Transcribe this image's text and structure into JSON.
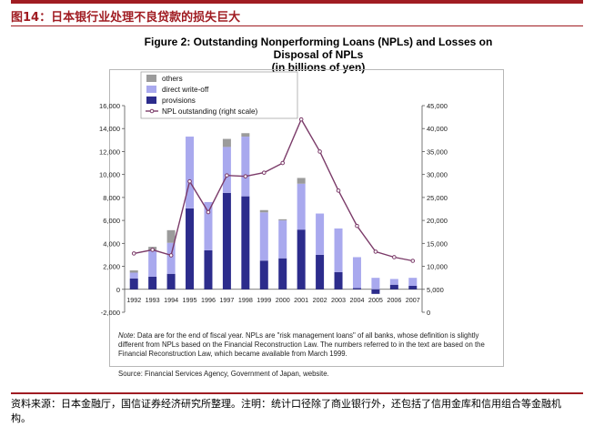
{
  "figure_caption": "图14：日本银行业处理不良贷款的损失巨大",
  "chart_title_line1": "Figure 2: Outstanding Nonperforming Loans (NPLs) and Losses on Disposal of NPLs",
  "chart_title_line2": "(in billions of yen)",
  "note_label": "Note",
  "note_text": ": Data are for the end of fiscal year. NPLs are \"risk management loans\" of all banks, whose definition is slightly different from NPLs based on the Financial Reconstruction Law. The numbers referred to in the text are based on the Financial Reconstruction Law, which became available from March 1999.",
  "source_text": "Source: Financial Services Agency, Government of Japan, website.",
  "footer_text": "资料来源：日本金融厅，国信证券经济研究所整理。注明：统计口径除了商业银行外，还包括了信用金库和信用组合等金融机构。",
  "colors": {
    "accent": "#a01c22",
    "others": "#9b9b9b",
    "direct_write_off": "#a9a9ee",
    "provisions": "#2c2c8c",
    "npl_line": "#7b3b69"
  },
  "chart_data": {
    "type": "bar",
    "stacked": true,
    "categories": [
      "1992",
      "1993",
      "1994",
      "1995",
      "1996",
      "1997",
      "1998",
      "1999",
      "2000",
      "2001",
      "2002",
      "2003",
      "2004",
      "2005",
      "2006",
      "2007"
    ],
    "series": [
      {
        "name": "provisions",
        "values": [
          950,
          1100,
          1350,
          7050,
          3400,
          8400,
          8100,
          2500,
          2700,
          5200,
          3000,
          1500,
          100,
          -400,
          400,
          300
        ]
      },
      {
        "name": "direct write-off",
        "values": [
          500,
          2300,
          2700,
          6250,
          4200,
          4000,
          5200,
          4200,
          3300,
          4000,
          3600,
          3800,
          2700,
          1000,
          500,
          700
        ]
      },
      {
        "name": "others",
        "values": [
          200,
          300,
          1100,
          0,
          0,
          700,
          300,
          200,
          100,
          500,
          0,
          0,
          0,
          0,
          0,
          0
        ]
      }
    ],
    "line_series": {
      "name": "NPL outstanding (right scale)",
      "axis": "right",
      "values": [
        12800,
        13600,
        12400,
        28500,
        21800,
        29800,
        29600,
        30400,
        32500,
        42000,
        35000,
        26500,
        18800,
        13200,
        12000,
        11200
      ]
    },
    "legend": [
      "others",
      "direct write-off",
      "provisions",
      "NPL outstanding (right scale)"
    ],
    "left_axis": {
      "min": -2000,
      "max": 16000,
      "ticks": [
        -2000,
        0,
        2000,
        4000,
        6000,
        8000,
        10000,
        12000,
        14000,
        16000
      ],
      "tick_labels": [
        "-2,000",
        "0",
        "2,000",
        "4,000",
        "6,000",
        "8,000",
        "10,000",
        "12,000",
        "14,000",
        "16,000"
      ]
    },
    "right_axis": {
      "min": 0,
      "max": 45000,
      "ticks": [
        0,
        5000,
        10000,
        15000,
        20000,
        25000,
        30000,
        35000,
        40000,
        45000
      ],
      "tick_labels": [
        "0",
        "5,000",
        "10,000",
        "15,000",
        "20,000",
        "25,000",
        "30,000",
        "35,000",
        "40,000",
        "45,000"
      ]
    },
    "grid": false
  }
}
